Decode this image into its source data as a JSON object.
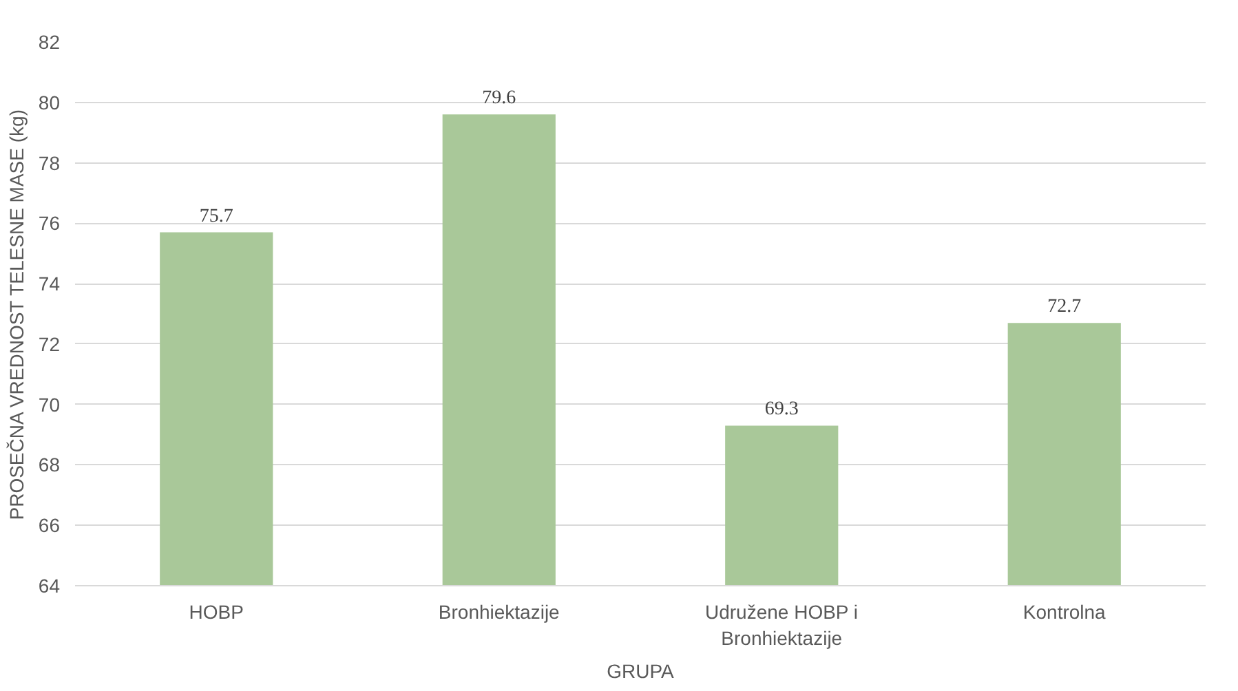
{
  "chart_data": {
    "type": "bar",
    "xlabel": "GRUPA",
    "ylabel": "PROSEČNA VREDNOST TELESNE MASE (kg)",
    "categories": [
      "HOBP",
      "Bronhiektazije",
      "Udružene HOBP i Bronhiektazije",
      "Kontrolna"
    ],
    "values": [
      75.7,
      79.6,
      69.3,
      72.7
    ],
    "color": "#a9c899",
    "ylim": [
      64,
      82
    ],
    "yticks": [
      64,
      66,
      68,
      70,
      72,
      74,
      76,
      78,
      80,
      82
    ],
    "grid": "y",
    "data_labels": true
  }
}
